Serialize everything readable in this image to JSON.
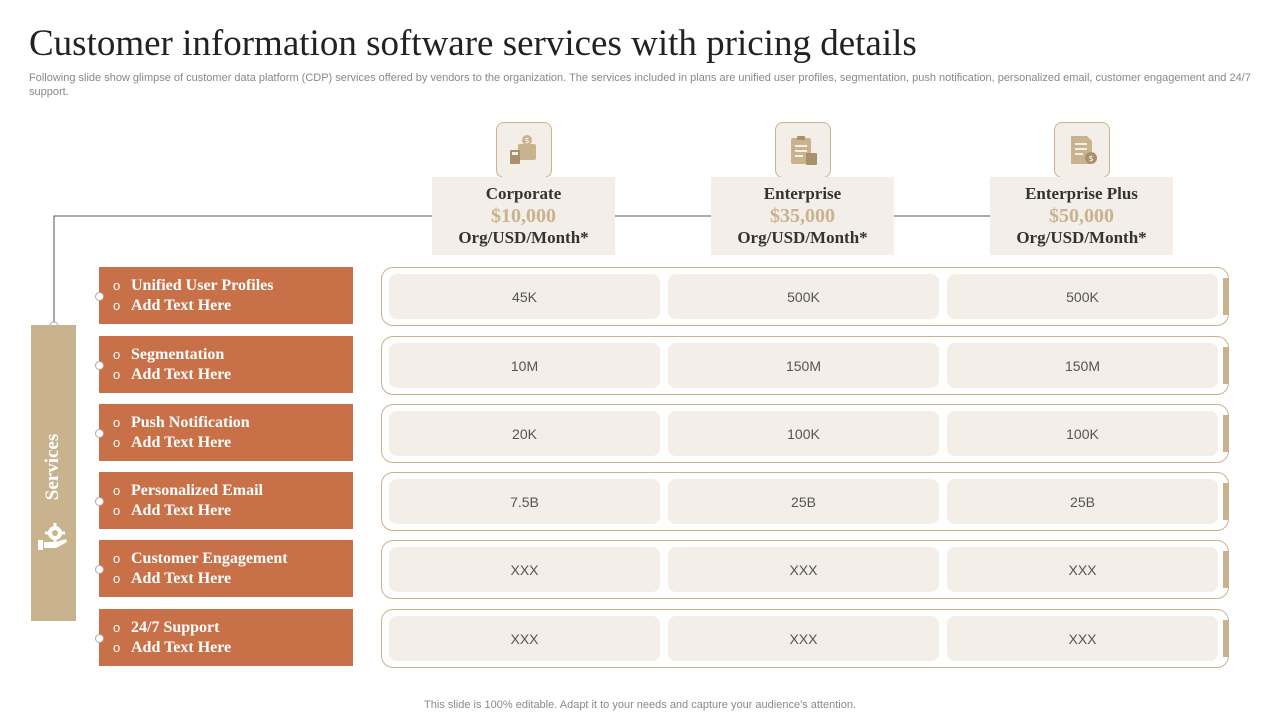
{
  "title": "Customer information software services with pricing details",
  "subtitle": "Following slide show glimpse of customer data platform (CDP) services offered by vendors to the organization. The services included in plans are unified user profiles, segmentation, push notification, personalized email, customer engagement and 24/7 support.",
  "footer": "This slide is 100% editable. Adapt it to your needs and capture your audience's attention.",
  "services_label": "Services",
  "plans": [
    {
      "name": "Corporate",
      "price": "$10,000",
      "unit": "Org/USD/Month*",
      "icon": "wallet-calculator-icon"
    },
    {
      "name": "Enterprise",
      "price": "$35,000",
      "unit": "Org/USD/Month*",
      "icon": "clipboard-checklist-icon"
    },
    {
      "name": "Enterprise Plus",
      "price": "$50,000",
      "unit": "Org/USD/Month*",
      "icon": "invoice-dollar-icon"
    }
  ],
  "services": [
    {
      "name": "Unified User Profiles",
      "sub": "Add Text Here",
      "values": [
        "45K",
        "500K",
        "500K"
      ]
    },
    {
      "name": "Segmentation",
      "sub": "Add Text Here",
      "values": [
        "10M",
        "150M",
        "150M"
      ]
    },
    {
      "name": "Push Notification",
      "sub": "Add Text Here",
      "values": [
        "20K",
        "100K",
        "100K"
      ]
    },
    {
      "name": "Personalized Email",
      "sub": "Add Text Here",
      "values": [
        "7.5B",
        "25B",
        "25B"
      ]
    },
    {
      "name": "Customer Engagement",
      "sub": "Add Text Here",
      "values": [
        "XXX",
        "XXX",
        "XXX"
      ]
    },
    {
      "name": "24/7 Support",
      "sub": "Add Text Here",
      "values": [
        "XXX",
        "XXX",
        "XXX"
      ]
    }
  ],
  "colors": {
    "accent_brown": "#c87048",
    "accent_tan": "#c9b28e",
    "cell_bg": "#f3eee7"
  }
}
